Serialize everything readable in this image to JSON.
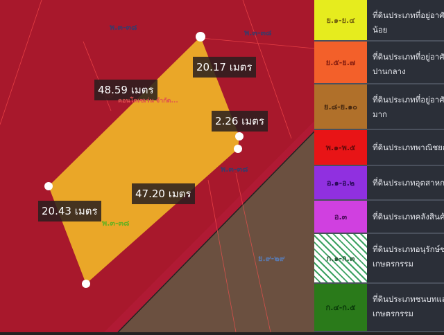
{
  "map": {
    "measurements": [
      "20.17 เมตร",
      "48.59 เมตร",
      "2.26 เมตร",
      "47.20 เมตร",
      "20.43 เมตร"
    ],
    "zone_labels": [
      "พ.๓-๓๘",
      "พ.๓-๓๘",
      "พ.๓-๓๘",
      "พ.๓-๓๘",
      "ย.๙-๒๙"
    ],
    "place_label": "คอนโดเซเว่น จำกัด...",
    "colors": {
      "commercial": "#b8142a",
      "selected_plot": "#f0b428",
      "residential_high": "#7a5a3a"
    }
  },
  "legend": [
    {
      "code": "ย.๑-ย.๔",
      "color": "#e6ec1e",
      "code_color": "#7a6a10",
      "text": [
        "ที่ดินประเภทที่อยู่อาศัยหนาแ",
        "น้อย"
      ]
    },
    {
      "code": "ย.๕-ย.๗",
      "color": "#f3602a",
      "code_color": "#8a2010",
      "text": [
        "ที่ดินประเภทที่อยู่อาศัยหนาแ",
        "ปานกลาง"
      ]
    },
    {
      "code": "ย.๘-ย.๑๐",
      "color": "#b0702a",
      "code_color": "#4a2a10",
      "text": [
        "ที่ดินประเภทที่อยู่อาศัยหนาแ",
        "มาก"
      ]
    },
    {
      "code": "พ.๑-พ.๕",
      "color": "#e81416",
      "code_color": "#6a0a0a",
      "text": [
        "ที่ดินประเภทพาณิชยกรรม"
      ]
    },
    {
      "code": "อ.๑-อ.๒",
      "color": "#9030e0",
      "code_color": "#2a0a5a",
      "text": [
        "ที่ดินประเภทอุตสาหกรรม"
      ]
    },
    {
      "code": "อ.๓",
      "color": "#d040e0",
      "code_color": "#4a0a5a",
      "text": [
        "ที่ดินประเภทคลังสินค้า"
      ]
    },
    {
      "code": "ก.๑-ก.๓",
      "color": "hatch",
      "code_color": "#2a5a3a",
      "text": [
        "ที่ดินประเภทอนุรักษ์ชนบทและ",
        "เกษตรกรรม"
      ]
    },
    {
      "code": "ก.๔-ก.๕",
      "color": "#2a7a1a",
      "code_color": "#0a3a0a",
      "text": [
        "ที่ดินประเภทชนบทและ",
        "เกษตรกรรม"
      ]
    }
  ]
}
